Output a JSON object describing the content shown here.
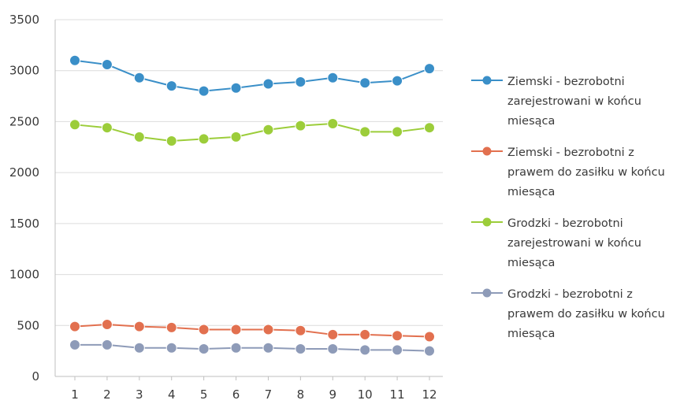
{
  "chart_data": {
    "type": "line",
    "title": "",
    "xlabel": "",
    "ylabel": "",
    "categories": [
      "1",
      "2",
      "3",
      "4",
      "5",
      "6",
      "7",
      "8",
      "9",
      "10",
      "11",
      "12"
    ],
    "ylim": [
      0,
      3500
    ],
    "yticks": [
      "0",
      "500",
      "1000",
      "1500",
      "2000",
      "2500",
      "3000",
      "3500"
    ],
    "grid": "horizontal",
    "legend_position": "right",
    "series": [
      {
        "name": "Ziemski - bezrobotni zarejestrowani w końcu miesąca",
        "color": "#3a8fc8",
        "values": [
          3100,
          3060,
          2930,
          2850,
          2800,
          2830,
          2870,
          2890,
          2930,
          2880,
          2900,
          3020
        ]
      },
      {
        "name": "Ziemski - bezrobotni z prawem do zasiłku w końcu miesąca",
        "color": "#e2704f",
        "values": [
          490,
          510,
          490,
          480,
          460,
          460,
          460,
          450,
          410,
          410,
          400,
          390
        ]
      },
      {
        "name": "Grodzki - bezrobotni zarejestrowani w końcu miesąca",
        "color": "#9ccd3a",
        "values": [
          2470,
          2440,
          2350,
          2310,
          2330,
          2350,
          2420,
          2460,
          2480,
          2400,
          2400,
          2440
        ]
      },
      {
        "name": "Grodzki - bezrobotni z prawem do zasiłku w końcu miesąca",
        "color": "#8e9bb8",
        "values": [
          310,
          310,
          280,
          280,
          270,
          280,
          280,
          270,
          270,
          260,
          260,
          250
        ]
      }
    ]
  }
}
